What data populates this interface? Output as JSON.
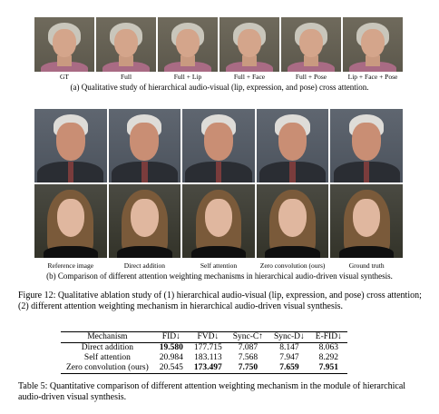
{
  "figure_a": {
    "labels": [
      "GT",
      "Full",
      "Full + Lip",
      "Full + Face",
      "Full + Pose",
      "Lip + Face + Pose"
    ],
    "caption": "(a) Qualitative study of hierarchical audio-visual (lip, expression, and pose) cross attention."
  },
  "figure_b": {
    "labels": [
      "Reference image",
      "Direct addition",
      "Self attention",
      "Zero convolution (ours)",
      "Ground truth"
    ],
    "caption": "(b) Comparison of different attention weighting mechanisms in hierarchical audio-driven visual synthesis."
  },
  "figure_caption": "Figure 12: Qualitative ablation study of (1) hierarchical audio-visual (lip, expression, and pose) cross attention; (2) different attention weighting mechanism in hierarchical audio-driven visual synthesis.",
  "table": {
    "headers": [
      "Mechanism",
      "FID↓",
      "FVD↓",
      "Sync-C↑",
      "Sync-D↓",
      "E-FID↓"
    ],
    "rows": [
      [
        "Direct addition",
        "19.580",
        "177.715",
        "7.087",
        "8.147",
        "8.063"
      ],
      [
        "Self attention",
        "20.984",
        "183.113",
        "7.568",
        "7.947",
        "8.292"
      ],
      [
        "Zero convolution (ours)",
        "20.545",
        "173.497",
        "7.750",
        "7.659",
        "7.951"
      ]
    ],
    "caption": "Table 5: Quantitative comparison of different attention weighting mechanism in the module of hierarchical audio-driven visual synthesis."
  }
}
